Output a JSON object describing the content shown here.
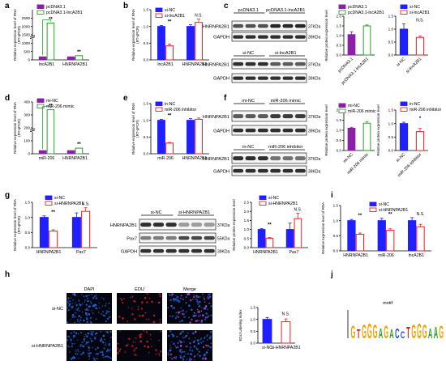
{
  "panel_labels": [
    "a",
    "b",
    "c",
    "d",
    "e",
    "f",
    "g",
    "h",
    "i",
    "j"
  ],
  "colors": {
    "purple": "#8b1fa8",
    "green": "#2aa12a",
    "blue": "#1f1fff",
    "red": "#ff1a1a",
    "black": "#000000",
    "white": "#ffffff",
    "band": "#1a1a1a",
    "dapi": "#1e63d6",
    "edu": "#d9261f"
  },
  "charts": {
    "a": {
      "type": "bar",
      "ylabel": [
        "Relative expression level of RNA",
        "(RT-qPCR)"
      ],
      "ylim": [
        0,
        3000
      ],
      "yticks": [
        0,
        500,
        1000,
        1500,
        2000,
        2500
      ],
      "categories": [
        "lncA2B1",
        "HNRNPA2B1"
      ],
      "legend": [
        "pcDNA3.1",
        "pcDNA3.1-lncA2B1"
      ],
      "colors": [
        "#8b1fa8",
        "#2aa12a"
      ],
      "styles": [
        "solid",
        "open"
      ],
      "values": [
        [
          1,
          2200
        ],
        [
          1,
          1.4
        ]
      ],
      "breakY": true,
      "sig": [
        "**",
        "**"
      ]
    },
    "b": {
      "type": "bar",
      "ylabel": [
        "Relative expression level of RNA",
        "(RT-qPCR)"
      ],
      "ylim": [
        0,
        1.5
      ],
      "yticks": [
        0.0,
        0.5,
        1.0,
        1.5
      ],
      "categories": [
        "lncA2B1",
        "HNRNPA2B1"
      ],
      "legend": [
        "si-NC",
        "si-lncA2B1"
      ],
      "colors": [
        "#1f1fff",
        "#ff1a1a"
      ],
      "styles": [
        "solid",
        "open"
      ],
      "values": [
        [
          1.0,
          0.42
        ],
        [
          1.0,
          1.12
        ]
      ],
      "errors": [
        [
          0.03,
          0.05
        ],
        [
          0.05,
          0.1
        ]
      ],
      "sig": [
        "**",
        "N.S."
      ]
    },
    "c1": {
      "type": "bar",
      "ylabel": [
        "Relative protein expression level"
      ],
      "ylim": [
        0,
        2.0
      ],
      "yticks": [
        0.0,
        0.5,
        1.0,
        1.5,
        2.0
      ],
      "categories": [
        "pcDNA3.1",
        "pcDNA3.1-lncA2B1"
      ],
      "legend": [
        "pcDNA3.1",
        "pcDNA3.1-lncA2B1"
      ],
      "colors": [
        "#8b1fa8",
        "#2aa12a"
      ],
      "styles": [
        "solid",
        "open"
      ],
      "values": [
        1.05,
        1.5
      ],
      "errors": [
        0.15,
        0.05
      ],
      "sig": [
        "*"
      ]
    },
    "c2": {
      "type": "bar",
      "ylabel": [],
      "ylim": [
        0,
        1.5
      ],
      "yticks": [
        0.0,
        0.5,
        1.0,
        1.5
      ],
      "categories": [
        "si-NC",
        "si-lncA2B1"
      ],
      "legend": [
        "si-NC",
        "si-lncA2B1"
      ],
      "colors": [
        "#1f1fff",
        "#ff1a1a"
      ],
      "styles": [
        "solid",
        "open"
      ],
      "values": [
        1.0,
        0.68
      ],
      "errors": [
        0.2,
        0.06
      ],
      "sig": [
        "N.S."
      ]
    },
    "d": {
      "type": "bar",
      "ylabel": [
        "Relative expression level of RNA",
        "(RT-qPCR)"
      ],
      "ylim": [
        0,
        400
      ],
      "yticks": [
        0,
        100,
        200,
        300,
        400
      ],
      "categories": [
        "miR-206",
        "HNRNPA2B1"
      ],
      "legend": [
        "mi-NC",
        "miR-206 mimic"
      ],
      "colors": [
        "#8b1fa8",
        "#2aa12a"
      ],
      "styles": [
        "solid",
        "open"
      ],
      "values": [
        [
          1,
          340
        ],
        [
          1,
          1.8
        ]
      ],
      "breakY": true,
      "sig": [
        "**",
        "**"
      ]
    },
    "e": {
      "type": "bar",
      "ylabel": [
        "Relative expression level of RNA",
        "(RT-qPCR)"
      ],
      "ylim": [
        0,
        1.5
      ],
      "yticks": [
        0.0,
        0.5,
        1.0,
        1.5
      ],
      "categories": [
        "miR-206",
        "HNRNPA2B1"
      ],
      "legend": [
        "in-NC",
        "miR-206 inhibitor"
      ],
      "colors": [
        "#1f1fff",
        "#ff1a1a"
      ],
      "styles": [
        "solid",
        "open"
      ],
      "values": [
        [
          1.0,
          0.32
        ],
        [
          1.0,
          1.03
        ]
      ],
      "errors": [
        [
          0.03,
          0.02
        ],
        [
          0.05,
          0.04
        ]
      ],
      "sig": [
        "**",
        ""
      ]
    },
    "f1": {
      "type": "bar",
      "ylabel": [
        "Relative protein expression level"
      ],
      "ylim": [
        0,
        2.0
      ],
      "yticks": [
        0.0,
        0.5,
        1.0,
        1.5,
        2.0
      ],
      "categories": [
        "mi-NC",
        "miR-206 mimic"
      ],
      "legend": [
        "mi-NC",
        "miR-206 mimic"
      ],
      "colors": [
        "#8b1fa8",
        "#2aa12a"
      ],
      "styles": [
        "solid",
        "open"
      ],
      "values": [
        1.1,
        1.35
      ],
      "errors": [
        0.05,
        0.08
      ],
      "sig": [
        ""
      ]
    },
    "f2": {
      "type": "bar",
      "ylabel": [
        "Relative protein expression level"
      ],
      "ylim": [
        0,
        1.5
      ],
      "yticks": [
        0.0,
        0.5,
        1.0,
        1.5
      ],
      "categories": [
        "in-NC",
        "miR-206 inhibitor"
      ],
      "legend": [
        "in-NC",
        "miR-206 inhibitor"
      ],
      "colors": [
        "#1f1fff",
        "#ff1a1a"
      ],
      "styles": [
        "solid",
        "open"
      ],
      "values": [
        1.0,
        0.7
      ],
      "errors": [
        0.05,
        0.12
      ],
      "sig": [
        "*"
      ]
    },
    "g1": {
      "type": "bar",
      "ylabel": [
        "Relative expression level of RNA",
        "(RT-qPCR)"
      ],
      "ylim": [
        0,
        1.5
      ],
      "yticks": [
        0.0,
        0.5,
        1.0,
        1.5
      ],
      "categories": [
        "HNRNPA2B1",
        "Pax7"
      ],
      "legend": [
        "si-NC",
        "si-HNRNPA2B1"
      ],
      "colors": [
        "#1f1fff",
        "#ff1a1a"
      ],
      "styles": [
        "solid",
        "open"
      ],
      "values": [
        [
          1.0,
          0.55
        ],
        [
          1.0,
          1.2
        ]
      ],
      "errors": [
        [
          0.05,
          0.04
        ],
        [
          0.15,
          0.12
        ]
      ],
      "sig": [
        "**",
        "N.S."
      ]
    },
    "g2": {
      "type": "bar",
      "ylabel": [
        "Relative protein expression level"
      ],
      "ylim": [
        0,
        2.5
      ],
      "yticks": [
        0.0,
        0.5,
        1.0,
        1.5,
        2.0,
        2.5
      ],
      "categories": [
        "HNRNPA2B1",
        "Pax7"
      ],
      "legend": [
        "si-NC",
        "si-HNRNPA2B1"
      ],
      "colors": [
        "#1f1fff",
        "#ff1a1a"
      ],
      "styles": [
        "solid",
        "open"
      ],
      "values": [
        [
          1.0,
          0.52
        ],
        [
          1.0,
          1.6
        ]
      ],
      "errors": [
        [
          0.05,
          0.04
        ],
        [
          0.35,
          0.3
        ]
      ],
      "sig": [
        "**",
        "N.S."
      ]
    },
    "i": {
      "type": "bar",
      "ylabel": [
        "Relative expression level of RNA"
      ],
      "ylim": [
        0,
        1.5
      ],
      "yticks": [
        0.0,
        0.5,
        1.0,
        1.5
      ],
      "categories": [
        "HNRNPA2B1",
        "miR-206",
        "lncA2B1"
      ],
      "legend": [
        "si-NC",
        "si-HNRNPA2B1"
      ],
      "colors": [
        "#1f1fff",
        "#ff1a1a"
      ],
      "styles": [
        "solid",
        "open"
      ],
      "values": [
        [
          1.0,
          0.55
        ],
        [
          1.0,
          0.68
        ],
        [
          1.0,
          0.8
        ]
      ],
      "errors": [
        [
          0.04,
          0.04
        ],
        [
          0.08,
          0.05
        ],
        [
          0.1,
          0.08
        ]
      ],
      "sig": [
        "**",
        "**",
        "N.S."
      ]
    },
    "h": {
      "type": "bar",
      "ylabel": [
        "EDU Labeling Index"
      ],
      "ylim": [
        0,
        1.5
      ],
      "yticks": [
        0.0,
        0.5,
        1.0,
        1.5
      ],
      "categories": [
        "si-NC",
        "si-HNRNPA2B1"
      ],
      "legend": [],
      "colors": [
        "#1f1fff",
        "#ff1a1a"
      ],
      "styles": [
        "solid",
        "open"
      ],
      "values": [
        1.0,
        0.9
      ],
      "errors": [
        0.08,
        0.12
      ],
      "sig": [
        "N.S."
      ]
    }
  },
  "blots": {
    "c": {
      "group1": [
        "pcDNA3.1",
        "pcDNA3.1-lncA2B1"
      ],
      "group2": [
        "si-NC",
        "si-lncA2B1"
      ],
      "rows": [
        "HNRNPA2B1",
        "GAPDH",
        "HNRNPA2B1",
        "GAPDH"
      ],
      "kda": [
        "37KDa",
        "39KDa",
        "37KDa",
        "39KDa"
      ]
    },
    "f": {
      "group1": [
        "mi-NC",
        "miR-206 mimic"
      ],
      "group2": [
        "in-NC",
        "miR-206 inhibitor"
      ],
      "rows": [
        "HNRNPA2B1",
        "GAPDH",
        "HNRNPA2B1",
        "GAPDH"
      ],
      "kda": [
        "37KDa",
        "39KDa",
        "37KDa",
        "39KDa"
      ]
    },
    "g": {
      "group1": [
        "si-NC",
        "si-HNRNPA2B1"
      ],
      "rows": [
        "HNRNPA2B1",
        "Pax7",
        "GAPDH"
      ],
      "kda": [
        "37KDa",
        "55KDa",
        "39KDa"
      ]
    }
  },
  "images_h": {
    "columns": [
      "DAPI",
      "EDU",
      "Merge"
    ],
    "rows": [
      "si-NC",
      "si-HNRNPA2B1"
    ]
  },
  "motif_j": {
    "title": "motif",
    "sequence": "GTGGGAGACCTGGGAAG"
  }
}
